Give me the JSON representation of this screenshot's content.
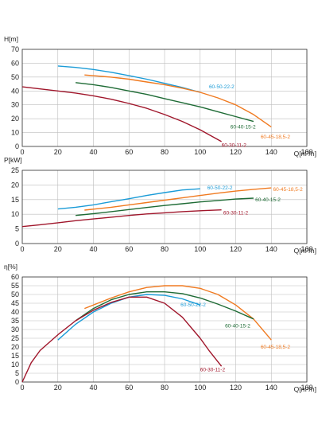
{
  "chart_data": [
    {
      "type": "line",
      "ylabel": "H[m]",
      "xlabel": "Q[m³/h]",
      "xlim": [
        0,
        160
      ],
      "ylim": [
        0,
        70
      ],
      "xticks": [
        "0",
        "20",
        "40",
        "60",
        "80",
        "100",
        "120",
        "140",
        "160"
      ],
      "yticks": [
        "0",
        "10",
        "20",
        "30",
        "40",
        "50",
        "60",
        "70"
      ],
      "grid": true,
      "series": [
        {
          "name": "60-50-22-2",
          "color": "#1a9bd7",
          "label_at": [
            105,
            43
          ],
          "x": [
            20,
            30,
            40,
            50,
            60,
            70,
            80,
            90,
            100
          ],
          "y": [
            58,
            57,
            55.5,
            53.5,
            51,
            48.5,
            45.5,
            42.5,
            39
          ]
        },
        {
          "name": "60-45-18,5-2",
          "color": "#f07a20",
          "label_at": [
            134,
            7
          ],
          "x": [
            35,
            50,
            60,
            70,
            80,
            90,
            100,
            110,
            120,
            130,
            140
          ],
          "y": [
            51.5,
            50,
            48.5,
            46.5,
            44.5,
            42,
            39,
            35,
            30,
            23,
            14
          ]
        },
        {
          "name": "60-40-15-2",
          "color": "#1e6b35",
          "label_at": [
            117,
            14
          ],
          "x": [
            30,
            40,
            50,
            60,
            70,
            80,
            90,
            100,
            110,
            120,
            130
          ],
          "y": [
            46,
            44.5,
            42.5,
            40,
            37.5,
            34.5,
            31.5,
            28.5,
            25,
            21.5,
            18
          ]
        },
        {
          "name": "60-30-11-2",
          "color": "#a0162b",
          "label_at": [
            112,
            1
          ],
          "x": [
            0,
            10,
            20,
            30,
            40,
            50,
            60,
            70,
            80,
            90,
            100,
            105,
            112
          ],
          "y": [
            43,
            41.5,
            40,
            38.5,
            36.5,
            34,
            31,
            27.5,
            23,
            18,
            12,
            8.5,
            3.5
          ]
        }
      ]
    },
    {
      "type": "line",
      "ylabel": "P[kW]",
      "xlabel": "Q[m³/h]",
      "xlim": [
        0,
        160
      ],
      "ylim": [
        0,
        25
      ],
      "xticks": [
        "0",
        "20",
        "40",
        "60",
        "80",
        "100",
        "120",
        "140",
        "160"
      ],
      "yticks": [
        "0",
        "5",
        "10",
        "15",
        "20",
        "25"
      ],
      "grid": true,
      "series": [
        {
          "name": "60-50-22-2",
          "color": "#1a9bd7",
          "label_at": [
            104,
            19
          ],
          "x": [
            20,
            30,
            40,
            50,
            60,
            70,
            80,
            90,
            100
          ],
          "y": [
            11.8,
            12.4,
            13.2,
            14.3,
            15.3,
            16.4,
            17.4,
            18.3,
            18.7
          ]
        },
        {
          "name": "60-45-18,5-2",
          "color": "#f07a20",
          "label_at": [
            141,
            18.5
          ],
          "x": [
            35,
            50,
            60,
            70,
            80,
            90,
            100,
            110,
            120,
            130,
            140
          ],
          "y": [
            11.4,
            12.4,
            13.2,
            14,
            14.8,
            15.6,
            16.4,
            17.2,
            17.9,
            18.5,
            19
          ]
        },
        {
          "name": "60-40-15-2",
          "color": "#1e6b35",
          "label_at": [
            131,
            15
          ],
          "x": [
            30,
            40,
            50,
            60,
            70,
            80,
            90,
            100,
            110,
            120,
            130
          ],
          "y": [
            9.6,
            10.2,
            10.9,
            11.6,
            12.3,
            13,
            13.6,
            14.2,
            14.7,
            15.2,
            15.5
          ]
        },
        {
          "name": "60-30-11-2",
          "color": "#a0162b",
          "label_at": [
            113,
            10.5
          ],
          "x": [
            0,
            10,
            20,
            30,
            40,
            50,
            60,
            70,
            80,
            90,
            100,
            112
          ],
          "y": [
            5.8,
            6.4,
            7.1,
            7.8,
            8.4,
            9.0,
            9.6,
            10.1,
            10.5,
            10.9,
            11.2,
            11.5
          ]
        }
      ]
    },
    {
      "type": "line",
      "ylabel": "η[%]",
      "xlabel": "Q[m³/h]",
      "xlim": [
        0,
        160
      ],
      "ylim": [
        0,
        60
      ],
      "xticks": [
        "0",
        "20",
        "40",
        "60",
        "80",
        "100",
        "120",
        "140",
        "160"
      ],
      "yticks": [
        "0",
        "5",
        "10",
        "15",
        "20",
        "25",
        "30",
        "35",
        "40",
        "45",
        "50",
        "55",
        "60"
      ],
      "grid": true,
      "series": [
        {
          "name": "60-50-22-2",
          "color": "#1a9bd7",
          "label_at": [
            89,
            44
          ],
          "x": [
            20,
            30,
            40,
            50,
            60,
            70,
            80,
            90,
            100
          ],
          "y": [
            24,
            33,
            40,
            45,
            48.5,
            50,
            49.5,
            47.5,
            44
          ]
        },
        {
          "name": "60-45-18,5-2",
          "color": "#f07a20",
          "label_at": [
            134,
            20
          ],
          "x": [
            35,
            50,
            60,
            70,
            80,
            90,
            100,
            110,
            120,
            130,
            140
          ],
          "y": [
            42,
            48,
            51.5,
            54,
            55,
            55,
            53.5,
            50,
            44,
            36,
            24
          ]
        },
        {
          "name": "60-40-15-2",
          "color": "#1e6b35",
          "label_at": [
            114,
            32
          ],
          "x": [
            30,
            40,
            50,
            60,
            70,
            80,
            90,
            100,
            110,
            120,
            130
          ],
          "y": [
            35,
            42,
            47,
            50,
            51.5,
            51.5,
            50.5,
            48,
            44.5,
            40.5,
            36
          ]
        },
        {
          "name": "60-30-11-2",
          "color": "#a0162b",
          "label_at": [
            100,
            7
          ],
          "x": [
            0,
            5,
            10,
            20,
            30,
            40,
            50,
            60,
            70,
            80,
            90,
            100,
            105,
            112
          ],
          "y": [
            0,
            11,
            18,
            27,
            35,
            41,
            45.5,
            48.5,
            48.5,
            45,
            37,
            25,
            18,
            9
          ]
        }
      ]
    }
  ]
}
